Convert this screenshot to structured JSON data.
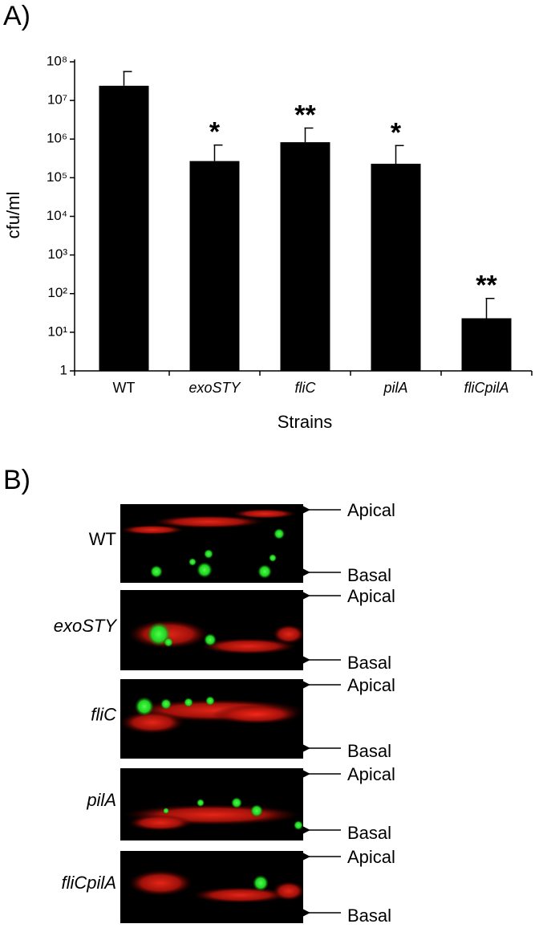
{
  "panel_a_label": "A)",
  "chart_data": {
    "type": "bar",
    "y_label": "cfu/ml",
    "x_label": "Strains",
    "categories": [
      "WT",
      "exoSTY",
      "fliC",
      "pilA",
      "fliCpilA"
    ],
    "values": [
      24000000,
      270000,
      830000,
      230000,
      23
    ],
    "errors": [
      32000000,
      430000,
      1100000,
      450000,
      52
    ],
    "annotations": [
      null,
      "*",
      "**",
      "*",
      "**"
    ],
    "color": "#000000",
    "log_scale": true,
    "ylim": [
      1,
      100000000
    ],
    "yticks": [
      1,
      {
        "value": 10,
        "label": "10¹"
      },
      {
        "value": 100,
        "label": "10²"
      },
      {
        "value": 1000,
        "label": "10³"
      },
      {
        "value": 10000,
        "label": "10⁴"
      },
      {
        "value": 100000,
        "label": "10⁵"
      },
      {
        "value": 1000000,
        "label": "10⁶"
      },
      {
        "value": 10000000,
        "label": "10⁷"
      },
      {
        "value": 100000000,
        "label": "10⁸"
      }
    ],
    "grid": false
  },
  "panel_b": {
    "label": "B)",
    "rows": [
      {
        "strain": "WT",
        "top": "Apical",
        "bottom": "Basal"
      },
      {
        "strain": "exoSTY",
        "top": "Apical",
        "bottom": "Basal"
      },
      {
        "strain": "fliC",
        "top": "Apical",
        "bottom": "Basal"
      },
      {
        "strain": "pilA",
        "top": "Apical",
        "bottom": "Basal"
      },
      {
        "strain": "fliCpilA",
        "top": "Apical",
        "bottom": "Basal"
      }
    ]
  }
}
